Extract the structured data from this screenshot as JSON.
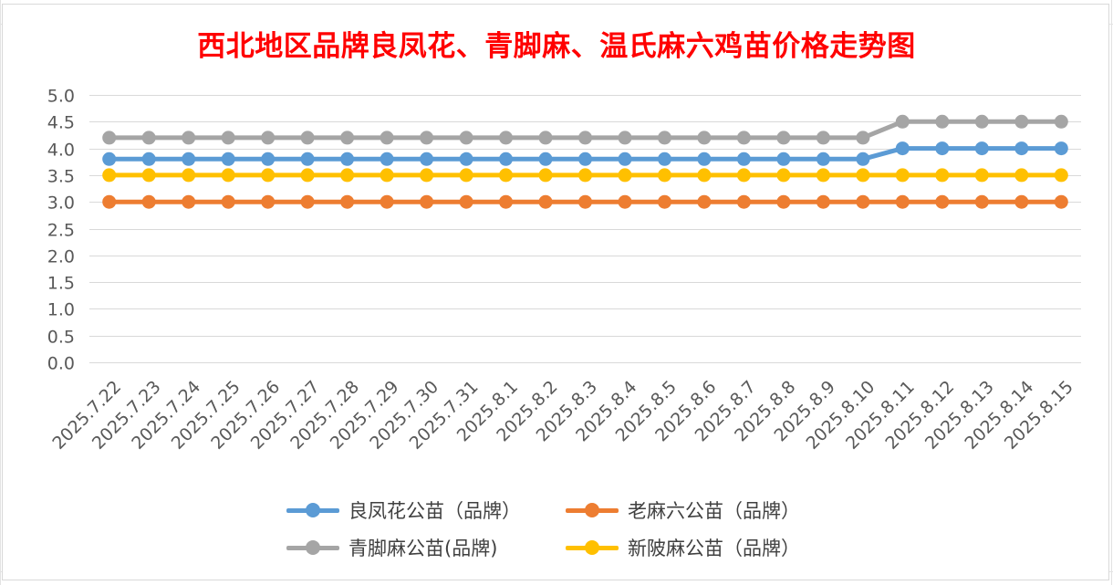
{
  "chart_data": {
    "type": "line",
    "title": "西北地区品牌良凤花、青脚麻、温氏麻六鸡苗价格走势图",
    "xlabel": "",
    "ylabel": "",
    "ylim": [
      0,
      5
    ],
    "ytick_step": 0.5,
    "grid": true,
    "legend_position": "bottom",
    "categories": [
      "2025.7.22",
      "2025.7.23",
      "2025.7.24",
      "2025.7.25",
      "2025.7.26",
      "2025.7.27",
      "2025.7.28",
      "2025.7.29",
      "2025.7.30",
      "2025.7.31",
      "2025.8.1",
      "2025.8.2",
      "2025.8.3",
      "2025.8.4",
      "2025.8.5",
      "2025.8.6",
      "2025.8.7",
      "2025.8.8",
      "2025.8.9",
      "2025.8.10",
      "2025.8.11",
      "2025.8.12",
      "2025.8.13",
      "2025.8.14",
      "2025.8.15"
    ],
    "series": [
      {
        "name": "良凤花公苗（品牌）",
        "color": "#5b9bd5",
        "values": [
          3.8,
          3.8,
          3.8,
          3.8,
          3.8,
          3.8,
          3.8,
          3.8,
          3.8,
          3.8,
          3.8,
          3.8,
          3.8,
          3.8,
          3.8,
          3.8,
          3.8,
          3.8,
          3.8,
          3.8,
          4.0,
          4.0,
          4.0,
          4.0,
          4.0
        ]
      },
      {
        "name": "老麻六公苗（品牌）",
        "color": "#ed7d31",
        "values": [
          3.0,
          3.0,
          3.0,
          3.0,
          3.0,
          3.0,
          3.0,
          3.0,
          3.0,
          3.0,
          3.0,
          3.0,
          3.0,
          3.0,
          3.0,
          3.0,
          3.0,
          3.0,
          3.0,
          3.0,
          3.0,
          3.0,
          3.0,
          3.0,
          3.0
        ]
      },
      {
        "name": "青脚麻公苗(品牌)",
        "color": "#a5a5a5",
        "values": [
          4.2,
          4.2,
          4.2,
          4.2,
          4.2,
          4.2,
          4.2,
          4.2,
          4.2,
          4.2,
          4.2,
          4.2,
          4.2,
          4.2,
          4.2,
          4.2,
          4.2,
          4.2,
          4.2,
          4.2,
          4.5,
          4.5,
          4.5,
          4.5,
          4.5
        ]
      },
      {
        "name": "新陂麻公苗（品牌）",
        "color": "#ffc000",
        "values": [
          3.5,
          3.5,
          3.5,
          3.5,
          3.5,
          3.5,
          3.5,
          3.5,
          3.5,
          3.5,
          3.5,
          3.5,
          3.5,
          3.5,
          3.5,
          3.5,
          3.5,
          3.5,
          3.5,
          3.5,
          3.5,
          3.5,
          3.5,
          3.5,
          3.5
        ]
      }
    ]
  }
}
